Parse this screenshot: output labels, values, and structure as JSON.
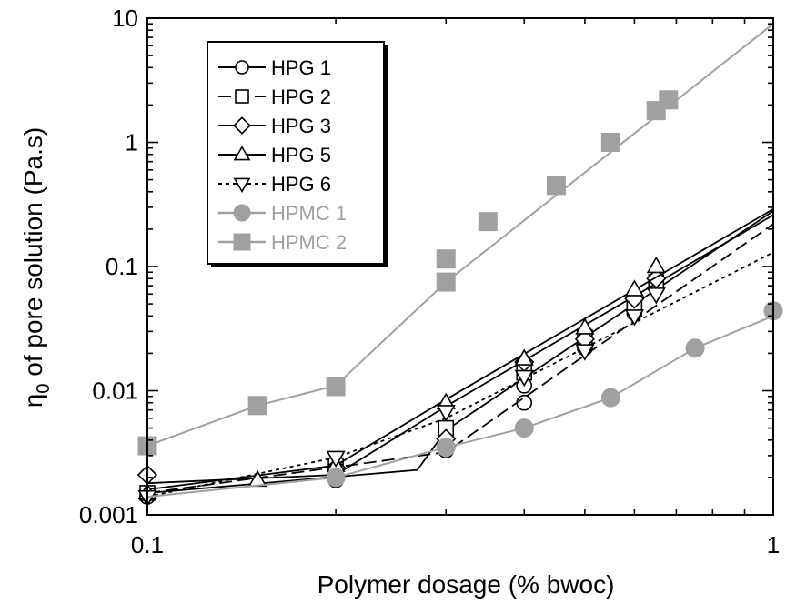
{
  "chart_data": {
    "type": "line",
    "title": "",
    "xlabel": "Polymer dosage (% bwoc)",
    "ylabel": {
      "symbol": "η",
      "sub": "0",
      "rest": " of pore solution (Pa.s)"
    },
    "x_scale": "log",
    "y_scale": "log",
    "xlim": [
      0.1,
      1
    ],
    "ylim": [
      0.001,
      10
    ],
    "x_ticks": [
      {
        "value": 0.1,
        "label": "0.1"
      },
      {
        "value": 1,
        "label": "1"
      }
    ],
    "y_ticks": [
      {
        "value": 0.001,
        "label": "0.001"
      },
      {
        "value": 0.01,
        "label": "0.01"
      },
      {
        "value": 0.1,
        "label": "0.1"
      },
      {
        "value": 1,
        "label": "1"
      },
      {
        "value": 10,
        "label": "10"
      }
    ],
    "grid": false,
    "legend_position": "top-left",
    "series": [
      {
        "name": "HPG 1",
        "marker": "circle",
        "filled": false,
        "color": "#000000",
        "dash": "",
        "points": [
          [
            0.1,
            0.0014
          ],
          [
            0.2,
            0.0019
          ],
          [
            0.3,
            0.0033
          ],
          [
            0.4,
            0.008
          ],
          [
            0.4,
            0.011
          ],
          [
            0.5,
            0.022
          ],
          [
            0.6,
            0.042
          ],
          [
            0.65,
            0.07
          ]
        ],
        "fit": [
          [
            0.1,
            0.0015
          ],
          [
            0.27,
            0.0023
          ],
          [
            0.3,
            0.0048
          ],
          [
            1,
            0.28
          ]
        ]
      },
      {
        "name": "HPG 2",
        "marker": "square",
        "filled": false,
        "color": "#000000",
        "dash": "14,6",
        "points": [
          [
            0.1,
            0.0015
          ],
          [
            0.2,
            0.0025
          ],
          [
            0.3,
            0.005
          ],
          [
            0.4,
            0.014
          ],
          [
            0.5,
            0.027
          ],
          [
            0.6,
            0.05
          ],
          [
            0.65,
            0.075
          ]
        ],
        "fit": [
          [
            0.1,
            0.0015
          ],
          [
            0.3,
            0.0032
          ],
          [
            1,
            0.22
          ]
        ]
      },
      {
        "name": "HPG 3",
        "marker": "diamond",
        "filled": false,
        "color": "#000000",
        "dash": "",
        "points": [
          [
            0.1,
            0.0021
          ],
          [
            0.2,
            0.0024
          ],
          [
            0.3,
            0.0041
          ],
          [
            0.4,
            0.017
          ],
          [
            0.5,
            0.026
          ],
          [
            0.6,
            0.055
          ],
          [
            0.65,
            0.08
          ]
        ],
        "fit": [
          [
            0.1,
            0.0018
          ],
          [
            0.2,
            0.0021
          ],
          [
            0.3,
            0.0075
          ],
          [
            1,
            0.26
          ]
        ]
      },
      {
        "name": "HPG 5",
        "marker": "triangle-up",
        "filled": false,
        "color": "#000000",
        "dash": "",
        "points": [
          [
            0.1,
            0.0015
          ],
          [
            0.15,
            0.0019
          ],
          [
            0.2,
            0.0025
          ],
          [
            0.3,
            0.008
          ],
          [
            0.4,
            0.018
          ],
          [
            0.5,
            0.032
          ],
          [
            0.6,
            0.065
          ],
          [
            0.65,
            0.1
          ]
        ],
        "fit": [
          [
            0.1,
            0.0016
          ],
          [
            0.2,
            0.0025
          ],
          [
            0.3,
            0.0085
          ],
          [
            1,
            0.29
          ]
        ]
      },
      {
        "name": "HPG 6",
        "marker": "triangle-down",
        "filled": false,
        "color": "#000000",
        "dash": "4,4",
        "points": [
          [
            0.1,
            0.0014
          ],
          [
            0.2,
            0.0029
          ],
          [
            0.3,
            0.0068
          ],
          [
            0.4,
            0.013
          ],
          [
            0.5,
            0.021
          ],
          [
            0.6,
            0.04
          ],
          [
            0.65,
            0.06
          ]
        ],
        "fit": [
          [
            0.1,
            0.0014
          ],
          [
            0.2,
            0.0029
          ],
          [
            0.3,
            0.006
          ],
          [
            1,
            0.13
          ]
        ]
      },
      {
        "name": "HPMC 1",
        "marker": "circle",
        "filled": true,
        "color": "#a0a0a0",
        "dash": "",
        "points": [
          [
            0.2,
            0.002
          ],
          [
            0.3,
            0.0035
          ],
          [
            0.4,
            0.005
          ],
          [
            0.55,
            0.0088
          ],
          [
            0.75,
            0.022
          ],
          [
            1,
            0.044
          ]
        ],
        "fit": [
          [
            0.1,
            0.0014
          ],
          [
            0.2,
            0.002
          ],
          [
            0.3,
            0.0035
          ],
          [
            0.4,
            0.005
          ],
          [
            0.55,
            0.0088
          ],
          [
            0.75,
            0.022
          ],
          [
            1,
            0.04
          ]
        ]
      },
      {
        "name": "HPMC 2",
        "marker": "square",
        "filled": true,
        "color": "#a0a0a0",
        "dash": "",
        "points": [
          [
            0.1,
            0.0036
          ],
          [
            0.15,
            0.0076
          ],
          [
            0.2,
            0.0108
          ],
          [
            0.3,
            0.075
          ],
          [
            0.3,
            0.115
          ],
          [
            0.35,
            0.23
          ],
          [
            0.45,
            0.45
          ],
          [
            0.55,
            1.0
          ],
          [
            0.65,
            1.8
          ],
          [
            0.68,
            2.2
          ]
        ],
        "fit": [
          [
            0.1,
            0.0036
          ],
          [
            0.15,
            0.0076
          ],
          [
            0.2,
            0.011
          ],
          [
            0.3,
            0.075
          ],
          [
            1,
            9
          ]
        ]
      }
    ]
  }
}
